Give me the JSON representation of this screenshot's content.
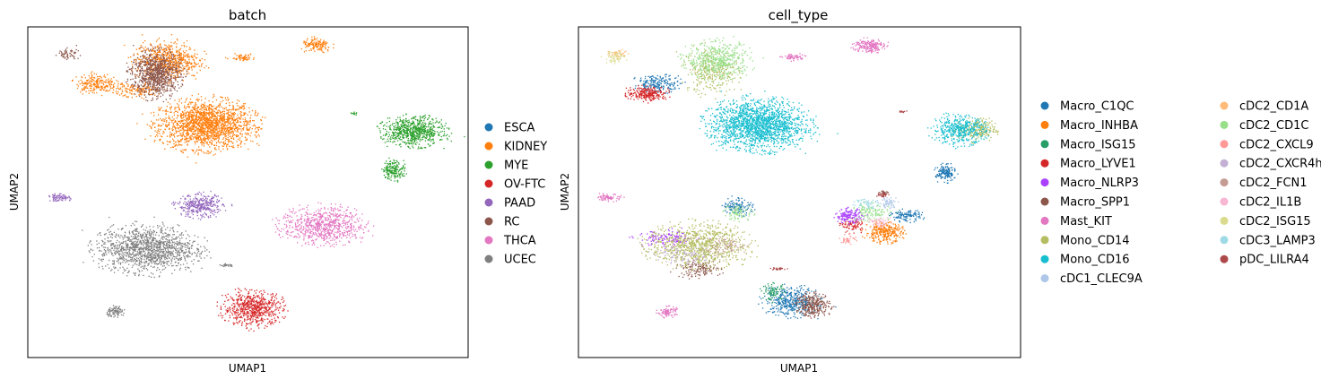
{
  "chart_data": [
    {
      "type": "scatter",
      "title": "batch",
      "xlabel": "UMAP1",
      "ylabel": "UMAP2",
      "xlim": [
        0,
        100
      ],
      "ylim": [
        0,
        100
      ],
      "grid": false,
      "legend_placement": "right-outside",
      "series": [
        {
          "name": "ESCA",
          "color": "#1f77b4",
          "clusters": []
        },
        {
          "name": "KIDNEY",
          "color": "#ff7f0e",
          "clusters": [
            {
              "cx": 40.5,
              "cy": 70.5,
              "rx": 12.5,
              "ry": 8.5,
              "n": 1800
            },
            {
              "cx": 31.5,
              "cy": 90,
              "rx": 8.5,
              "ry": 6.5,
              "n": 650
            },
            {
              "cx": 15.5,
              "cy": 83,
              "rx": 5.5,
              "ry": 3.5,
              "n": 220
            },
            {
              "cx": 25,
              "cy": 81,
              "rx": 6,
              "ry": 2.5,
              "n": 140
            },
            {
              "cx": 65.5,
              "cy": 94.5,
              "rx": 4,
              "ry": 2.5,
              "n": 140
            },
            {
              "cx": 48.5,
              "cy": 91,
              "rx": 3.5,
              "ry": 1.2,
              "n": 60
            }
          ]
        },
        {
          "name": "MYE",
          "color": "#2ca02c",
          "clusters": [
            {
              "cx": 87.5,
              "cy": 68.5,
              "rx": 8,
              "ry": 5,
              "n": 700
            },
            {
              "cx": 83,
              "cy": 57,
              "rx": 3,
              "ry": 3.5,
              "n": 180
            },
            {
              "cx": 74,
              "cy": 74,
              "rx": 1,
              "ry": 0.5,
              "n": 12
            }
          ]
        },
        {
          "name": "OV-FTC",
          "color": "#d62728",
          "clusters": [
            {
              "cx": 51,
              "cy": 15,
              "rx": 8,
              "ry": 6,
              "n": 650
            }
          ]
        },
        {
          "name": "PAAD",
          "color": "#9467bd",
          "clusters": [
            {
              "cx": 39,
              "cy": 46,
              "rx": 6,
              "ry": 4,
              "n": 350
            },
            {
              "cx": 7,
              "cy": 48.5,
              "rx": 3,
              "ry": 1.2,
              "n": 80
            }
          ]
        },
        {
          "name": "RC",
          "color": "#8c564b",
          "clusters": [
            {
              "cx": 29,
              "cy": 86,
              "rx": 6.5,
              "ry": 8,
              "n": 900
            },
            {
              "cx": 9,
              "cy": 92,
              "rx": 3,
              "ry": 1.8,
              "n": 60
            }
          ]
        },
        {
          "name": "THCA",
          "color": "#e377c2",
          "clusters": [
            {
              "cx": 67,
              "cy": 40,
              "rx": 11,
              "ry": 6.5,
              "n": 750
            }
          ]
        },
        {
          "name": "UCEC",
          "color": "#7f7f7f",
          "clusters": [
            {
              "cx": 27,
              "cy": 33,
              "rx": 13,
              "ry": 8,
              "n": 1300
            },
            {
              "cx": 20,
              "cy": 14,
              "rx": 2.5,
              "ry": 1.8,
              "n": 90
            },
            {
              "cx": 45,
              "cy": 28,
              "rx": 2,
              "ry": 0.5,
              "n": 30
            }
          ]
        }
      ]
    },
    {
      "type": "scatter",
      "title": "cell_type",
      "xlabel": "UMAP1",
      "ylabel": "UMAP2",
      "xlim": [
        0,
        100
      ],
      "ylim": [
        0,
        100
      ],
      "grid": false,
      "legend_placement": "right-outside",
      "series": [
        {
          "name": "Macro_C1QC",
          "color": "#1f77b4",
          "clusters": [
            {
              "cx": 48,
              "cy": 17,
              "rx": 7,
              "ry": 5,
              "n": 420
            },
            {
              "cx": 83,
              "cy": 56,
              "rx": 2.5,
              "ry": 3,
              "n": 160
            },
            {
              "cx": 74,
              "cy": 43,
              "rx": 4,
              "ry": 2,
              "n": 120
            },
            {
              "cx": 18,
              "cy": 83,
              "rx": 6,
              "ry": 3,
              "n": 200
            },
            {
              "cx": 36,
              "cy": 46,
              "rx": 4,
              "ry": 3,
              "n": 120
            }
          ]
        },
        {
          "name": "Macro_INHBA",
          "color": "#ff7f0e",
          "clusters": [
            {
              "cx": 69,
              "cy": 38,
              "rx": 5,
              "ry": 3.5,
              "n": 300
            }
          ]
        },
        {
          "name": "Macro_ISG15",
          "color": "#279e68",
          "clusters": [
            {
              "cx": 44,
              "cy": 20,
              "rx": 3,
              "ry": 3,
              "n": 90
            }
          ]
        },
        {
          "name": "Macro_LYVE1",
          "color": "#d62728",
          "clusters": [
            {
              "cx": 15.5,
              "cy": 80,
              "rx": 5.5,
              "ry": 2.5,
              "n": 250
            },
            {
              "cx": 62,
              "cy": 40,
              "rx": 3,
              "ry": 2.5,
              "n": 80
            }
          ]
        },
        {
          "name": "Macro_NLRP3",
          "color": "#aa40fc",
          "clusters": [
            {
              "cx": 61,
              "cy": 43,
              "rx": 3.5,
              "ry": 2.5,
              "n": 160
            },
            {
              "cx": 20,
              "cy": 36,
              "rx": 8,
              "ry": 3,
              "n": 150
            }
          ]
        },
        {
          "name": "Macro_SPP1",
          "color": "#8c564b",
          "clusters": [
            {
              "cx": 53,
              "cy": 16,
              "rx": 4.5,
              "ry": 4,
              "n": 300
            },
            {
              "cx": 27,
              "cy": 27,
              "rx": 6,
              "ry": 3,
              "n": 140
            },
            {
              "cx": 69,
              "cy": 50,
              "rx": 1.2,
              "ry": 0.8,
              "n": 25
            }
          ]
        },
        {
          "name": "Mast_KIT",
          "color": "#e377c2",
          "clusters": [
            {
              "cx": 65.5,
              "cy": 94.5,
              "rx": 4,
              "ry": 2.5,
              "n": 200
            },
            {
              "cx": 7,
              "cy": 48.5,
              "rx": 3,
              "ry": 1.2,
              "n": 80
            },
            {
              "cx": 20,
              "cy": 14,
              "rx": 2.5,
              "ry": 1.8,
              "n": 90
            },
            {
              "cx": 48.5,
              "cy": 91,
              "rx": 3,
              "ry": 1.2,
              "n": 60
            }
          ]
        },
        {
          "name": "Mono_CD14",
          "color": "#b5bd61",
          "clusters": [
            {
              "cx": 27,
              "cy": 34,
              "rx": 13,
              "ry": 7.5,
              "n": 900
            },
            {
              "cx": 90,
              "cy": 69,
              "rx": 5,
              "ry": 4,
              "n": 220
            },
            {
              "cx": 30,
              "cy": 87,
              "rx": 7,
              "ry": 8,
              "n": 300
            }
          ]
        },
        {
          "name": "Mono_CD16",
          "color": "#17becf",
          "clusters": [
            {
              "cx": 40.5,
              "cy": 70.5,
              "rx": 12.5,
              "ry": 8.5,
              "n": 1800
            },
            {
              "cx": 86,
              "cy": 69,
              "rx": 7,
              "ry": 5,
              "n": 450
            }
          ]
        },
        {
          "name": "cDC1_CLEC9A",
          "color": "#aec7e8",
          "clusters": [
            {
              "cx": 70,
              "cy": 47,
              "rx": 2.5,
              "ry": 2,
              "n": 60
            }
          ]
        },
        {
          "name": "cDC2_CD1A",
          "color": "#ffbb78",
          "clusters": [
            {
              "cx": 9,
              "cy": 92,
              "rx": 3,
              "ry": 1.8,
              "n": 40
            }
          ]
        },
        {
          "name": "cDC2_CD1C",
          "color": "#98df8a",
          "clusters": [
            {
              "cx": 31.5,
              "cy": 90,
              "rx": 8.5,
              "ry": 6.5,
              "n": 500
            },
            {
              "cx": 66,
              "cy": 44,
              "rx": 5,
              "ry": 3,
              "n": 120
            },
            {
              "cx": 36,
              "cy": 44,
              "rx": 4,
              "ry": 3,
              "n": 80
            }
          ]
        },
        {
          "name": "cDC2_CXCL9",
          "color": "#ff9896",
          "clusters": [
            {
              "cx": 61,
              "cy": 36,
              "rx": 2,
              "ry": 2,
              "n": 40
            }
          ]
        },
        {
          "name": "cDC2_CXCR4hi",
          "color": "#c5b0d5",
          "clusters": [
            {
              "cx": 24,
              "cy": 31,
              "rx": 8,
              "ry": 3,
              "n": 100
            }
          ]
        },
        {
          "name": "cDC2_FCN1",
          "color": "#c49c94",
          "clusters": [
            {
              "cx": 33,
              "cy": 34,
              "rx": 6,
              "ry": 3,
              "n": 80
            }
          ]
        },
        {
          "name": "cDC2_IL1B",
          "color": "#f7b6d2",
          "clusters": [
            {
              "cx": 68,
              "cy": 41,
              "rx": 3,
              "ry": 2,
              "n": 50
            }
          ]
        },
        {
          "name": "cDC2_ISG15",
          "color": "#dbdb8d",
          "clusters": [
            {
              "cx": 8,
              "cy": 91,
              "rx": 3,
              "ry": 2,
              "n": 60
            }
          ]
        },
        {
          "name": "cDC3_LAMP3",
          "color": "#9edae5",
          "clusters": [
            {
              "cx": 65,
              "cy": 47,
              "rx": 3,
              "ry": 2,
              "n": 50
            }
          ]
        },
        {
          "name": "pDC_LILRA4",
          "color": "#ad494a",
          "clusters": [
            {
              "cx": 68.5,
              "cy": 49.5,
              "rx": 1.5,
              "ry": 1,
              "n": 30
            },
            {
              "cx": 73,
              "cy": 74.5,
              "rx": 1,
              "ry": 0.5,
              "n": 12
            },
            {
              "cx": 45,
              "cy": 27,
              "rx": 2,
              "ry": 0.5,
              "n": 25
            }
          ]
        }
      ]
    }
  ]
}
